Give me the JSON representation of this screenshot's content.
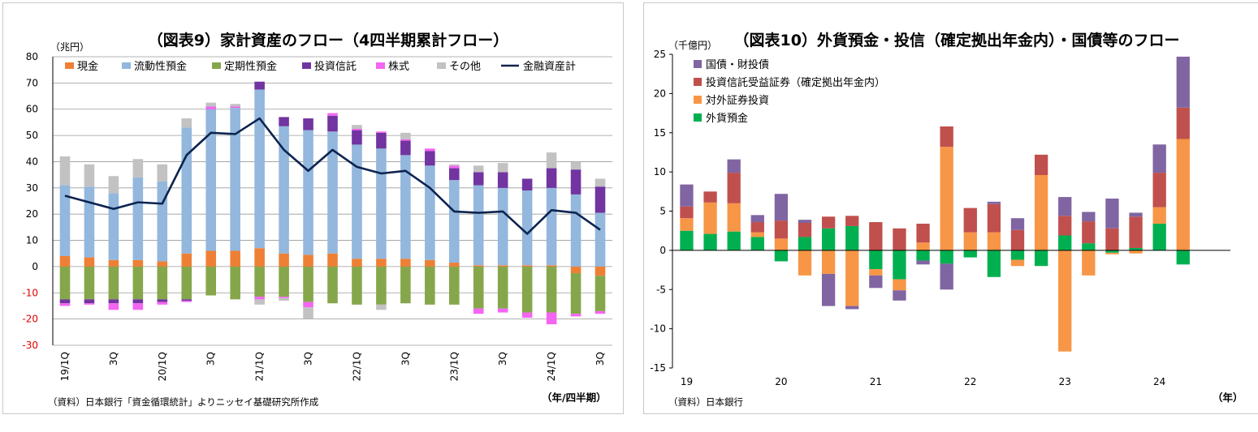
{
  "colors": {
    "cash": "#ee8035",
    "liquid": "#93b7dd",
    "time": "#86a64b",
    "trust": "#7134a0",
    "stock": "#f465f2",
    "other": "#c2c2c2",
    "total": "#0d2450",
    "jgb": "#8065a2",
    "itrust": "#c0504d",
    "foreign_sec": "#f79646",
    "fx_dep": "#00b050"
  },
  "chart_data": [
    {
      "type": "bar",
      "stacked": true,
      "title": "（図表9）家計資産のフロー（4四半期累計フロー）",
      "ylabel": "（兆円）",
      "xlabel": "（年/四半期）",
      "source": "（資料）日本銀行「資金循環統計」よりニッセイ基礎研究所作成",
      "ylim": [
        -30,
        80
      ],
      "yticks": [
        80,
        70,
        60,
        50,
        40,
        30,
        20,
        10,
        0,
        -10,
        -20,
        -30
      ],
      "grid": true,
      "legend_position": "top",
      "categories": [
        "19/1Q",
        "19/2Q",
        "19/3Q",
        "19/4Q",
        "20/1Q",
        "20/2Q",
        "20/3Q",
        "20/4Q",
        "21/1Q",
        "21/2Q",
        "21/3Q",
        "21/4Q",
        "22/1Q",
        "22/2Q",
        "22/3Q",
        "22/4Q",
        "23/1Q",
        "23/2Q",
        "23/3Q",
        "23/4Q",
        "24/1Q",
        "24/2Q",
        "24/3Q"
      ],
      "xtick_labels": [
        {
          "index": 0,
          "label": "19/1Q"
        },
        {
          "index": 2,
          "label": "3Q"
        },
        {
          "index": 4,
          "label": "20/1Q"
        },
        {
          "index": 6,
          "label": "3Q"
        },
        {
          "index": 8,
          "label": "21/1Q"
        },
        {
          "index": 10,
          "label": "3Q"
        },
        {
          "index": 12,
          "label": "22/1Q"
        },
        {
          "index": 14,
          "label": "3Q"
        },
        {
          "index": 16,
          "label": "23/1Q"
        },
        {
          "index": 18,
          "label": "3Q"
        },
        {
          "index": 20,
          "label": "24/1Q"
        },
        {
          "index": 22,
          "label": "3Q"
        }
      ],
      "series": [
        {
          "key": "cash",
          "name": "現金",
          "values": [
            4,
            3.5,
            2.5,
            2.5,
            2,
            5,
            6,
            6,
            7,
            5,
            4.5,
            5,
            3,
            3,
            3,
            2.5,
            1.5,
            0.5,
            0.5,
            0.5,
            0.5,
            -2.5,
            -3.5
          ]
        },
        {
          "key": "liquid",
          "name": "流動性預金",
          "values": [
            27,
            27,
            25.5,
            31.5,
            30.5,
            48,
            54,
            54.5,
            60.5,
            48.5,
            47.5,
            46.5,
            43.5,
            42,
            39.5,
            36,
            31.5,
            30.5,
            29.5,
            28.5,
            29.5,
            27.5,
            20.5
          ]
        },
        {
          "key": "time",
          "name": "定期性預金",
          "values": [
            -12.5,
            -12.5,
            -12.5,
            -12.5,
            -12.5,
            -12.5,
            -11,
            -12.5,
            -11.5,
            -11.5,
            -13.5,
            -14,
            -14.5,
            -14.5,
            -14,
            -14.5,
            -14.5,
            -16,
            -16,
            -17.5,
            -17.5,
            -15.5,
            -13.5
          ]
        },
        {
          "key": "trust",
          "name": "投資信託",
          "values": [
            -1.5,
            -1.5,
            -1.5,
            -1.5,
            -1,
            -0.5,
            0,
            0,
            3,
            3.5,
            4.5,
            6,
            5.5,
            6,
            5.5,
            5.5,
            4.5,
            5,
            6,
            4.5,
            7.5,
            9.5,
            10
          ]
        },
        {
          "key": "stock",
          "name": "株式",
          "values": [
            -1,
            -0.5,
            -2.5,
            -2.5,
            -1,
            -0.5,
            1,
            0.5,
            -1,
            -0.5,
            -2,
            1,
            0.5,
            0.5,
            0.5,
            1,
            1,
            -2,
            -1.5,
            -2,
            -4.5,
            -1,
            -1
          ]
        },
        {
          "key": "other",
          "name": "その他",
          "values": [
            11,
            8.5,
            6.5,
            7,
            6.5,
            3.5,
            1.5,
            1,
            -2,
            -1,
            -4.5,
            0,
            1.5,
            -2,
            2.5,
            0,
            0.5,
            2.5,
            3.5,
            0,
            6,
            3,
            3
          ]
        }
      ],
      "line_series": {
        "key": "total",
        "name": "金融資産計",
        "values": [
          27,
          24.5,
          22,
          24.5,
          24,
          42.5,
          51,
          50.5,
          56.5,
          44.5,
          36.5,
          44.5,
          38,
          35.5,
          36.5,
          30,
          21,
          20.5,
          21,
          12.5,
          21.5,
          20.5,
          14
        ]
      }
    },
    {
      "type": "bar",
      "stacked": true,
      "title": "（図表10）外貨預金・投信（確定拠出年金内）・国債等のフロー",
      "ylabel": "（千億円）",
      "xlabel": "（年）",
      "source": "（資料）日本銀行",
      "ylim": [
        -15,
        25
      ],
      "yticks": [
        25,
        20,
        15,
        10,
        5,
        0,
        -5,
        -10,
        -15
      ],
      "grid": false,
      "legend_position": "top-left",
      "categories": [
        "19/1Q",
        "19/2Q",
        "19/3Q",
        "19/4Q",
        "20/1Q",
        "20/2Q",
        "20/3Q",
        "20/4Q",
        "21/1Q",
        "21/2Q",
        "21/3Q",
        "21/4Q",
        "22/1Q",
        "22/2Q",
        "22/3Q",
        "22/4Q",
        "23/1Q",
        "23/2Q",
        "23/3Q",
        "23/4Q",
        "24/1Q",
        "24/2Q",
        "24/3Q"
      ],
      "year_labels": [
        {
          "index": 0,
          "label": "19"
        },
        {
          "index": 4,
          "label": "20"
        },
        {
          "index": 8,
          "label": "21"
        },
        {
          "index": 12,
          "label": "22"
        },
        {
          "index": 16,
          "label": "23"
        },
        {
          "index": 20,
          "label": "24"
        }
      ],
      "series": [
        {
          "key": "fx_dep",
          "name": "外貨預金",
          "values": [
            2.5,
            2.1,
            2.4,
            1.7,
            -1.4,
            1.7,
            2.8,
            3.1,
            -2.4,
            -3.7,
            -1.3,
            -1.7,
            -0.9,
            -3.4,
            -1.2,
            -2,
            1.9,
            0.9,
            -0.3,
            0.3,
            3.4,
            -1.8,
            0
          ]
        },
        {
          "key": "foreign_sec",
          "name": "対外証券投資",
          "values": [
            1.6,
            4,
            3.6,
            0.6,
            1.5,
            -3.2,
            -3,
            -7.1,
            -0.8,
            -1.4,
            1,
            13.2,
            2.3,
            2.3,
            -0.8,
            9.6,
            -12.9,
            -3.2,
            -0.2,
            -0.4,
            2.1,
            14.2,
            0
          ]
        },
        {
          "key": "itrust",
          "name": "投資信託受益証券（確定拠出年金内）",
          "values": [
            1.5,
            1.4,
            3.9,
            1.3,
            2.3,
            1.8,
            1.5,
            1.3,
            3.6,
            2.8,
            2.4,
            2.6,
            3.1,
            3.6,
            2.6,
            2.6,
            2.5,
            2.8,
            2.8,
            4,
            4.4,
            4,
            0
          ]
        },
        {
          "key": "jgb",
          "name": "国債・財投債",
          "values": [
            2.8,
            0,
            1.7,
            0.9,
            3.4,
            0.4,
            -4.1,
            -0.4,
            -1.6,
            -1.3,
            -0.5,
            -3.3,
            0,
            0.3,
            1.5,
            0,
            2.4,
            1.2,
            3.8,
            0.5,
            3.6,
            6.5,
            0
          ]
        }
      ]
    }
  ]
}
